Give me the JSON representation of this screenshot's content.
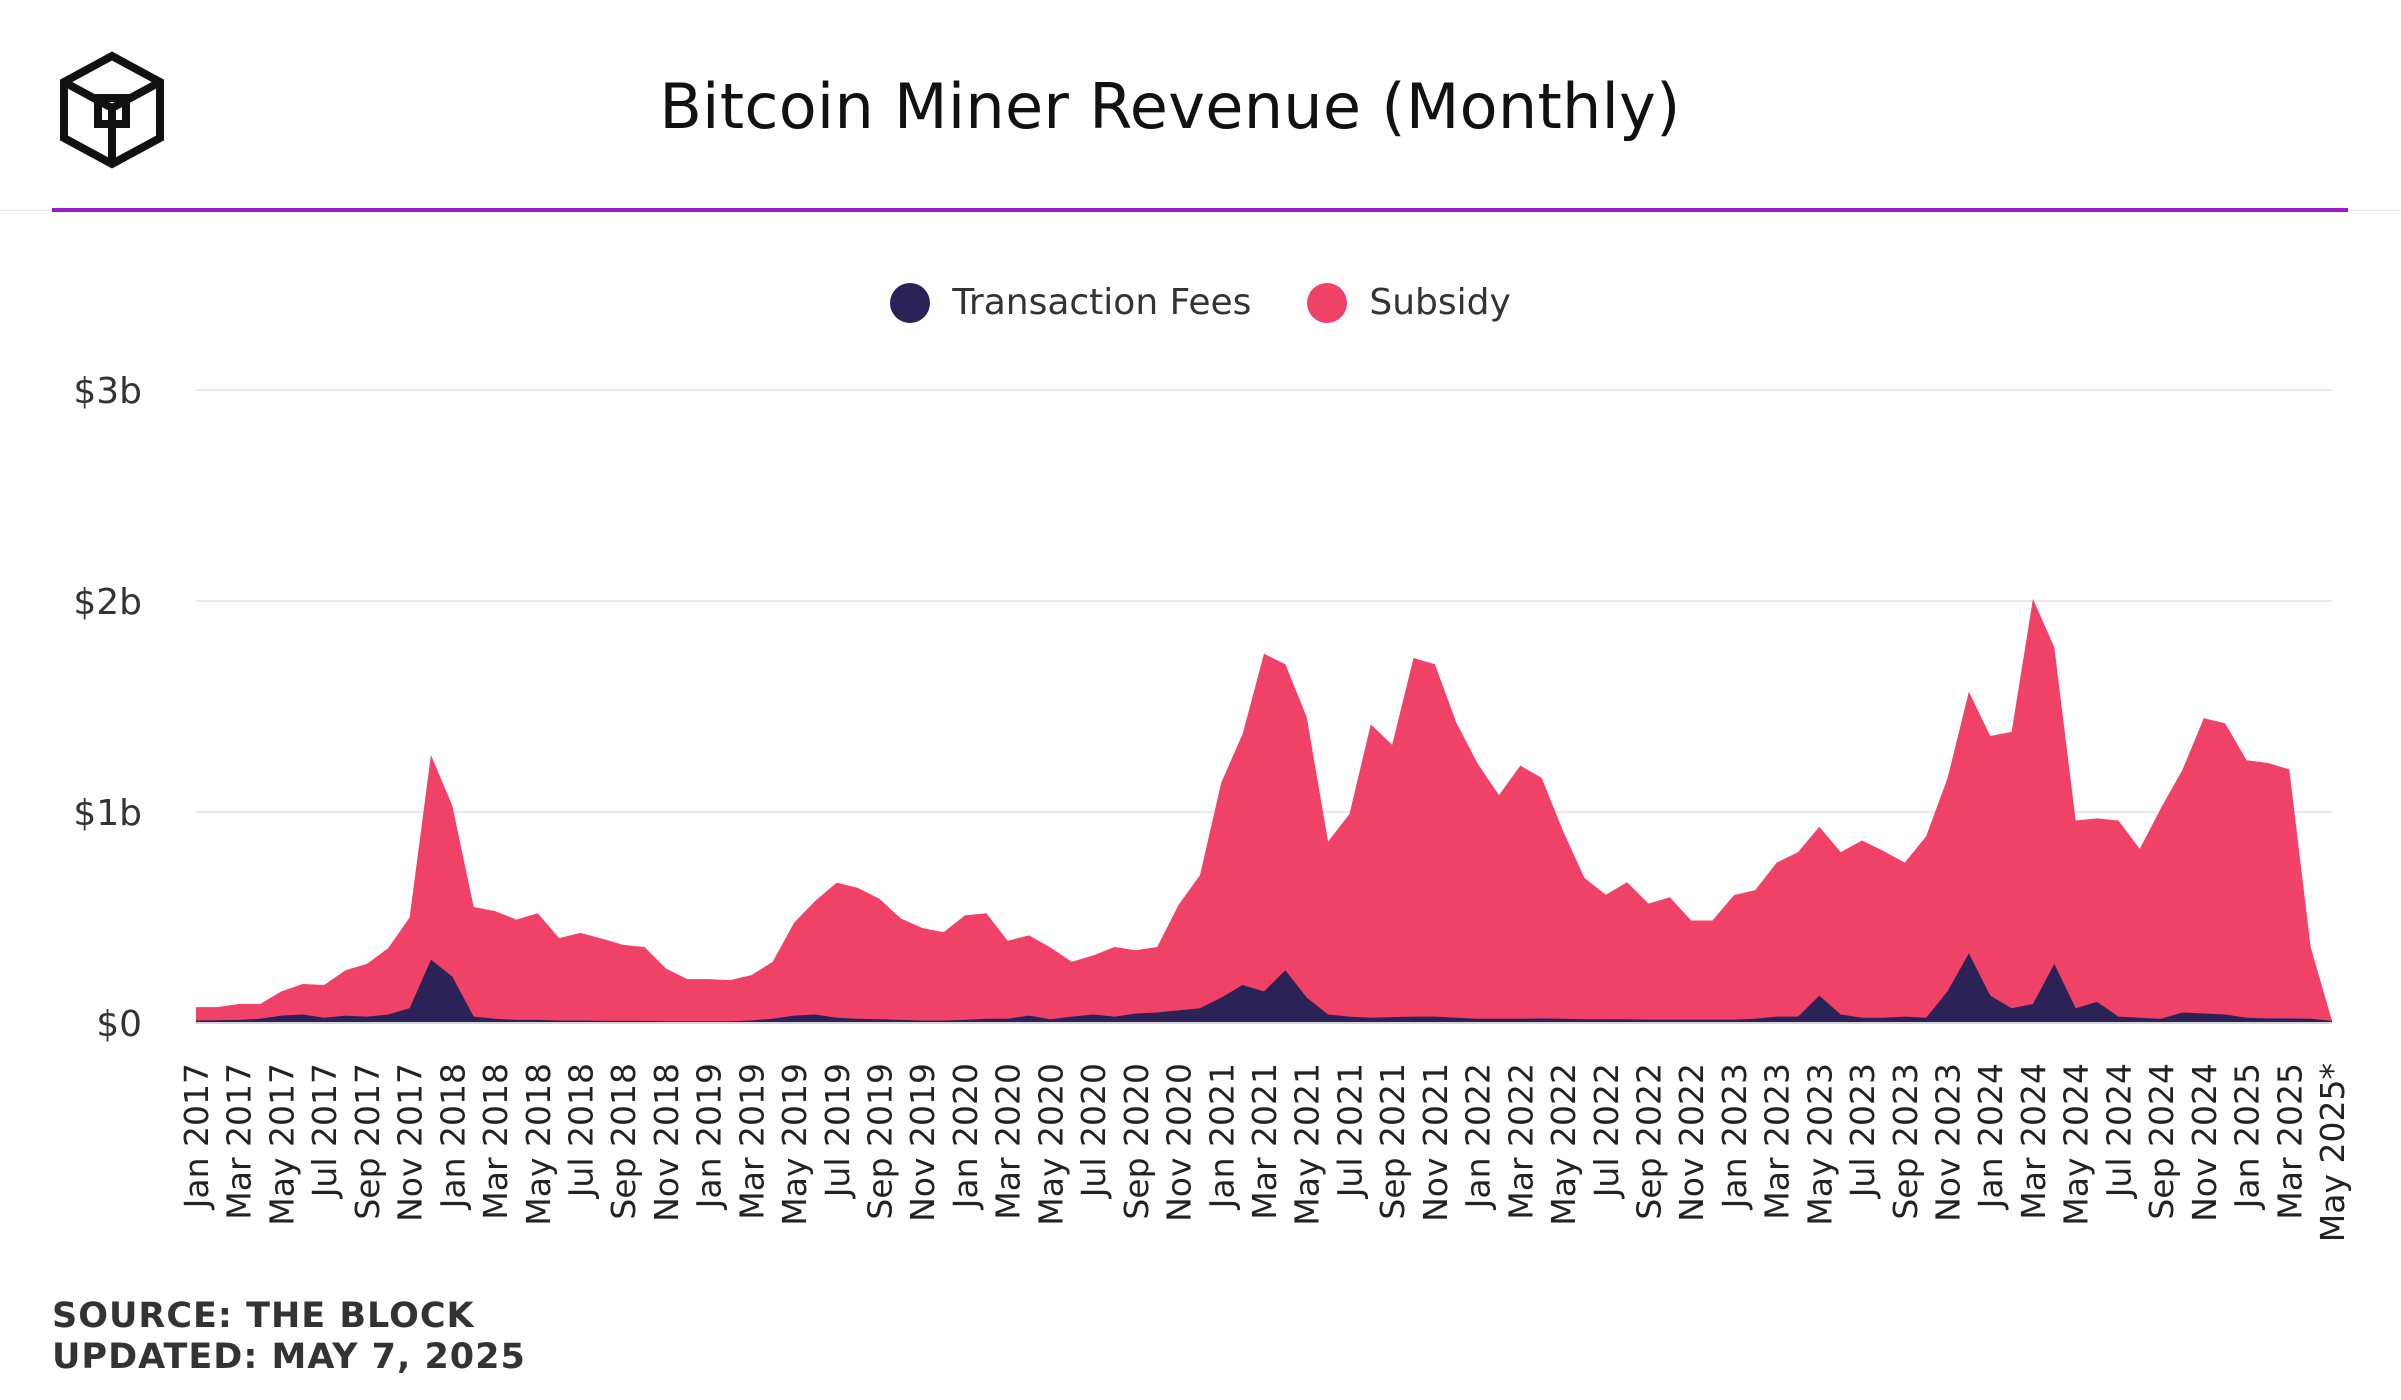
{
  "header": {
    "title": "Bitcoin Miner Revenue (Monthly)",
    "logo_icon": "cube-logo-icon"
  },
  "legend": [
    {
      "label": "Transaction Fees",
      "color": "#2b2258"
    },
    {
      "label": "Subsidy",
      "color": "#ef4266"
    }
  ],
  "footer": {
    "source": "SOURCE: THE BLOCK",
    "updated": "UPDATED: MAY 7, 2025"
  },
  "colors": {
    "accent_rule": "#9b1ccf",
    "fees": "#2b2258",
    "subsidy": "#ef4266",
    "grid": "#e9e9e9"
  },
  "chart_data": {
    "type": "area",
    "stacked": true,
    "title": "Bitcoin Miner Revenue (Monthly)",
    "ylim": [
      0,
      3000000000
    ],
    "yticks": [
      {
        "value": 0,
        "label": "$0"
      },
      {
        "value": 1000000000,
        "label": "$1b"
      },
      {
        "value": 2000000000,
        "label": "$2b"
      },
      {
        "value": 3000000000,
        "label": "$3b"
      }
    ],
    "grid": true,
    "legend_position": "top-center",
    "x": [
      "Jan 2017",
      "Feb 2017",
      "Mar 2017",
      "Apr 2017",
      "May 2017",
      "Jun 2017",
      "Jul 2017",
      "Aug 2017",
      "Sep 2017",
      "Oct 2017",
      "Nov 2017",
      "Dec 2017",
      "Jan 2018",
      "Feb 2018",
      "Mar 2018",
      "Apr 2018",
      "May 2018",
      "Jun 2018",
      "Jul 2018",
      "Aug 2018",
      "Sep 2018",
      "Oct 2018",
      "Nov 2018",
      "Dec 2018",
      "Jan 2019",
      "Feb 2019",
      "Mar 2019",
      "Apr 2019",
      "May 2019",
      "Jun 2019",
      "Jul 2019",
      "Aug 2019",
      "Sep 2019",
      "Oct 2019",
      "Nov 2019",
      "Dec 2019",
      "Jan 2020",
      "Feb 2020",
      "Mar 2020",
      "Apr 2020",
      "May 2020",
      "Jun 2020",
      "Jul 2020",
      "Aug 2020",
      "Sep 2020",
      "Oct 2020",
      "Nov 2020",
      "Dec 2020",
      "Jan 2021",
      "Feb 2021",
      "Mar 2021",
      "Apr 2021",
      "May 2021",
      "Jun 2021",
      "Jul 2021",
      "Aug 2021",
      "Sep 2021",
      "Oct 2021",
      "Nov 2021",
      "Dec 2021",
      "Jan 2022",
      "Feb 2022",
      "Mar 2022",
      "Apr 2022",
      "May 2022",
      "Jun 2022",
      "Jul 2022",
      "Aug 2022",
      "Sep 2022",
      "Oct 2022",
      "Nov 2022",
      "Dec 2022",
      "Jan 2023",
      "Feb 2023",
      "Mar 2023",
      "Apr 2023",
      "May 2023",
      "Jun 2023",
      "Jul 2023",
      "Aug 2023",
      "Sep 2023",
      "Oct 2023",
      "Nov 2023",
      "Dec 2023",
      "Jan 2024",
      "Feb 2024",
      "Mar 2024",
      "Apr 2024",
      "May 2024",
      "Jun 2024",
      "Jul 2024",
      "Aug 2024",
      "Sep 2024",
      "Oct 2024",
      "Nov 2024",
      "Dec 2024",
      "Jan 2025",
      "Feb 2025",
      "Mar 2025",
      "Apr 2025",
      "May 2025*"
    ],
    "xtick_labels": [
      "Jan 2017",
      "Mar 2017",
      "May 2017",
      "Jul 2017",
      "Sep 2017",
      "Nov 2017",
      "Jan 2018",
      "Mar 2018",
      "May 2018",
      "Jul 2018",
      "Sep 2018",
      "Nov 2018",
      "Jan 2019",
      "Mar 2019",
      "May 2019",
      "Jul 2019",
      "Sep 2019",
      "Nov 2019",
      "Jan 2020",
      "Mar 2020",
      "May 2020",
      "Jul 2020",
      "Sep 2020",
      "Nov 2020",
      "Jan 2021",
      "Mar 2021",
      "May 2021",
      "Jul 2021",
      "Sep 2021",
      "Nov 2021",
      "Jan 2022",
      "Mar 2022",
      "May 2022",
      "Jul 2022",
      "Sep 2022",
      "Nov 2022",
      "Jan 2023",
      "Mar 2023",
      "May 2023",
      "Jul 2023",
      "Sep 2023",
      "Nov 2023",
      "Jan 2024",
      "Mar 2024",
      "May 2024",
      "Jul 2024",
      "Sep 2024",
      "Nov 2024",
      "Jan 2025",
      "Mar 2025",
      "May 2025*"
    ],
    "series": [
      {
        "name": "Transaction Fees",
        "values": [
          0.012,
          0.013,
          0.015,
          0.02,
          0.035,
          0.04,
          0.025,
          0.035,
          0.03,
          0.04,
          0.07,
          0.3,
          0.22,
          0.03,
          0.02,
          0.015,
          0.015,
          0.012,
          0.012,
          0.01,
          0.01,
          0.01,
          0.008,
          0.008,
          0.008,
          0.008,
          0.012,
          0.02,
          0.035,
          0.04,
          0.025,
          0.02,
          0.018,
          0.015,
          0.012,
          0.012,
          0.015,
          0.02,
          0.02,
          0.035,
          0.018,
          0.03,
          0.04,
          0.03,
          0.045,
          0.05,
          0.06,
          0.07,
          0.12,
          0.18,
          0.15,
          0.25,
          0.12,
          0.04,
          0.03,
          0.025,
          0.028,
          0.03,
          0.03,
          0.025,
          0.02,
          0.02,
          0.02,
          0.022,
          0.02,
          0.018,
          0.018,
          0.017,
          0.016,
          0.016,
          0.016,
          0.016,
          0.016,
          0.02,
          0.03,
          0.03,
          0.13,
          0.04,
          0.025,
          0.025,
          0.03,
          0.025,
          0.15,
          0.33,
          0.13,
          0.07,
          0.09,
          0.28,
          0.07,
          0.1,
          0.03,
          0.025,
          0.02,
          0.05,
          0.045,
          0.04,
          0.025,
          0.022,
          0.022,
          0.02,
          0.01
        ]
      },
      {
        "name": "Subsidy",
        "values": [
          0.063,
          0.062,
          0.075,
          0.07,
          0.115,
          0.145,
          0.155,
          0.215,
          0.25,
          0.315,
          0.43,
          0.97,
          0.81,
          0.52,
          0.51,
          0.475,
          0.505,
          0.39,
          0.415,
          0.39,
          0.36,
          0.35,
          0.25,
          0.2,
          0.2,
          0.195,
          0.215,
          0.27,
          0.44,
          0.54,
          0.64,
          0.62,
          0.57,
          0.48,
          0.438,
          0.418,
          0.495,
          0.5,
          0.37,
          0.38,
          0.34,
          0.26,
          0.28,
          0.33,
          0.3,
          0.31,
          0.5,
          0.63,
          1.02,
          1.19,
          1.6,
          1.45,
          1.33,
          0.82,
          0.96,
          1.39,
          1.29,
          1.7,
          1.67,
          1.4,
          1.21,
          1.06,
          1.2,
          1.14,
          0.89,
          0.67,
          0.59,
          0.65,
          0.55,
          0.58,
          0.47,
          0.47,
          0.59,
          0.61,
          0.73,
          0.78,
          0.8,
          0.77,
          0.84,
          0.79,
          0.73,
          0.86,
          1.01,
          1.24,
          1.23,
          1.31,
          1.92,
          1.5,
          0.89,
          0.87,
          0.93,
          0.8,
          1.0,
          1.15,
          1.4,
          1.38,
          1.22,
          1.21,
          1.18,
          0.34,
          0.0
        ]
      }
    ],
    "units_note": "values in billions USD"
  }
}
